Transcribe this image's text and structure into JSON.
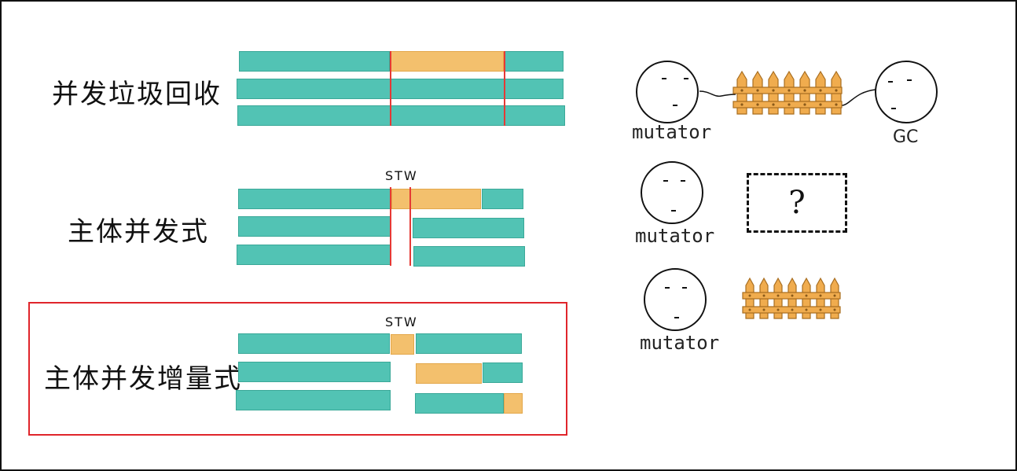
{
  "rows": [
    {
      "label": "并发垃圾回收"
    },
    {
      "label": "主体并发式",
      "stw": "STW"
    },
    {
      "label": "主体并发增量式",
      "stw": "STW"
    }
  ],
  "right": {
    "mutator_label": "mutator",
    "gc_label": "GC",
    "question": "?"
  },
  "colors": {
    "mutator": "#52c3b4",
    "gc": "#f3c06d",
    "stw_line": "#e53935",
    "highlight": "#e0252b"
  }
}
